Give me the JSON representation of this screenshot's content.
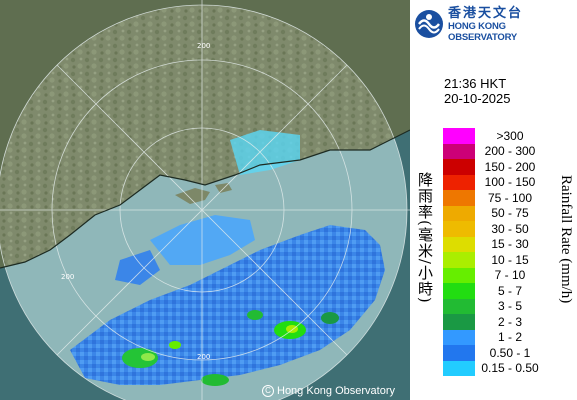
{
  "header": {
    "logo_chinese": "香港天文台",
    "logo_english": "HONG KONG OBSERVATORY"
  },
  "timestamp": {
    "time": "21:36 HKT",
    "date": "20-10-2025"
  },
  "legend": {
    "title_english": "Rainfall Rate (mm/h)",
    "title_chinese": "降雨率(毫米/小時)",
    "items": [
      {
        "label": ">300",
        "color": "#ff00ff"
      },
      {
        "label": "200 - 300",
        "color": "#cc0077"
      },
      {
        "label": "150 - 200",
        "color": "#cc0000"
      },
      {
        "label": "100 - 150",
        "color": "#ee2200"
      },
      {
        "label": "75 - 100",
        "color": "#ee7700"
      },
      {
        "label": "50 - 75",
        "color": "#eeaa00"
      },
      {
        "label": "30 - 50",
        "color": "#eebb00"
      },
      {
        "label": "15 - 30",
        "color": "#dddd00"
      },
      {
        "label": "10 - 15",
        "color": "#aaee00"
      },
      {
        "label": "7 - 10",
        "color": "#66ee00"
      },
      {
        "label": "5 - 7",
        "color": "#22dd11"
      },
      {
        "label": "3 - 5",
        "color": "#22bb33"
      },
      {
        "label": "2 - 3",
        "color": "#1a9944"
      },
      {
        "label": "1 - 2",
        "color": "#3399ff"
      },
      {
        "label": "0.50 - 1",
        "color": "#2277ee"
      },
      {
        "label": "0.15 - 0.50",
        "color": "#22ccff"
      }
    ]
  },
  "map": {
    "copyright": "Hong Kong Observatory",
    "range_label": "200",
    "colors": {
      "sea": "#3f6f74",
      "land": "#7d8868",
      "radar_disc": "#ffffff"
    }
  }
}
